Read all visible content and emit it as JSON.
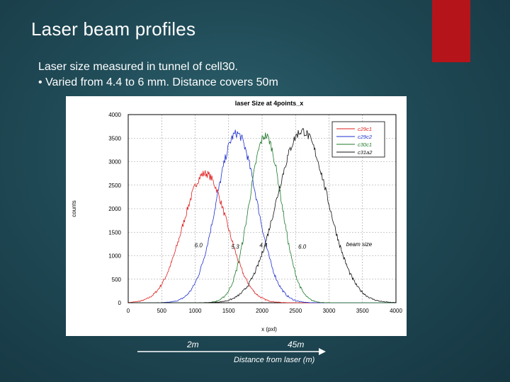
{
  "slide": {
    "title": "Laser beam profiles",
    "subtitle": "Laser size measured in tunnel of cell30.",
    "bullet_symbol": "•",
    "bullet": "Varied from 4.4 to 6 mm. Distance covers 50m",
    "accent_color": "#b5141b"
  },
  "annotation": {
    "left_label": "2m",
    "right_label": "45m",
    "caption": "Distance from laser (m)"
  },
  "chart_data": {
    "type": "line",
    "title": "laser Size at 4points_x",
    "xlabel": "x (pxl)",
    "ylabel": "counts",
    "xlim": [
      0,
      4000
    ],
    "ylim": [
      0,
      4000
    ],
    "xticks": [
      0,
      500,
      1000,
      1500,
      2000,
      2500,
      3000,
      3500,
      4000
    ],
    "yticks": [
      0,
      500,
      1000,
      1500,
      2000,
      2500,
      3000,
      3500,
      4000
    ],
    "grid": true,
    "legend_position": "top-right",
    "series": [
      {
        "name": "c29c1",
        "color": "#e01e1e",
        "center": 1150,
        "sigma": 330,
        "peak": 2750
      },
      {
        "name": "c29c2",
        "color": "#1c2fd0",
        "center": 1620,
        "sigma": 300,
        "peak": 3600
      },
      {
        "name": "c30c1",
        "color": "#1e7a2a",
        "center": 2050,
        "sigma": 240,
        "peak": 3550
      },
      {
        "name": "c31a2",
        "color": "#111111",
        "center": 2600,
        "sigma": 380,
        "peak": 3650
      }
    ],
    "annotations": [
      {
        "text": "6.0",
        "x": 1050,
        "y": 1180
      },
      {
        "text": "5.3",
        "x": 1600,
        "y": 1150
      },
      {
        "text": "4.4",
        "x": 2020,
        "y": 1180
      },
      {
        "text": "6.0",
        "x": 2600,
        "y": 1150
      },
      {
        "text": "beam size",
        "x": 3450,
        "y": 1200
      }
    ]
  }
}
